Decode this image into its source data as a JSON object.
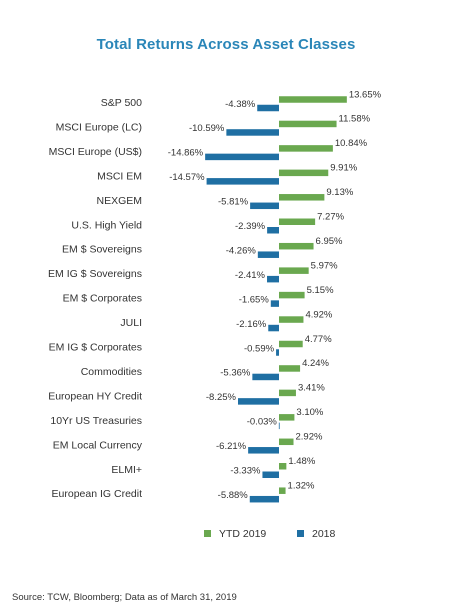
{
  "chart_data": {
    "type": "bar",
    "orientation": "horizontal",
    "title": "Total Returns Across Asset Classes",
    "categories": [
      "S&P 500",
      "MSCI Europe (LC)",
      "MSCI Europe (US$)",
      "MSCI EM",
      "NEXGEM",
      "U.S. High Yield",
      "EM $ Sovereigns",
      "EM IG $ Sovereigns",
      "EM $ Corporates",
      "JULI",
      "EM IG $ Corporates",
      "Commodities",
      "European HY Credit",
      "10Yr US Treasuries",
      "EM Local Currency",
      "ELMI+",
      "European IG Credit"
    ],
    "series": [
      {
        "name": "YTD 2019",
        "color": "#6aa84f",
        "values": [
          13.65,
          11.58,
          10.84,
          9.91,
          9.13,
          7.27,
          6.95,
          5.97,
          5.15,
          4.92,
          4.77,
          4.24,
          3.41,
          3.1,
          2.92,
          1.48,
          1.32
        ],
        "labels": [
          "13.65%",
          "11.58%",
          "10.84%",
          "9.91%",
          "9.13%",
          "7.27%",
          "6.95%",
          "5.97%",
          "5.15%",
          "4.92%",
          "4.77%",
          "4.24%",
          "3.41%",
          "3.10%",
          "2.92%",
          "1.48%",
          "1.32%"
        ]
      },
      {
        "name": "2018",
        "color": "#1f6fa3",
        "values": [
          -4.38,
          -10.59,
          -14.86,
          -14.57,
          -5.81,
          -2.39,
          -4.26,
          -2.41,
          -1.65,
          -2.16,
          -0.59,
          -5.36,
          -8.25,
          -0.03,
          -6.21,
          -3.33,
          -5.88
        ],
        "labels": [
          "-4.38%",
          "-10.59%",
          "-14.86%",
          "-14.57%",
          "-5.81%",
          "-2.39%",
          "-4.26%",
          "-2.41%",
          "-1.65%",
          "-2.16%",
          "-0.59%",
          "-5.36%",
          "-8.25%",
          "-0.03%",
          "-6.21%",
          "-3.33%",
          "-5.88%"
        ]
      }
    ],
    "legend_position": "bottom",
    "grid": false
  },
  "footer": {
    "source": "Source: TCW, Bloomberg; Data as of March 31, 2019"
  },
  "colors": {
    "title": "#2a86b8",
    "ytd_2019": "#6aa84f",
    "y2018": "#1f6fa3"
  }
}
